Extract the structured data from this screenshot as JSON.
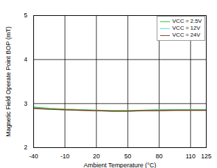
{
  "chart_data": {
    "type": "line",
    "xlabel": "Ambient Temperature (°C)",
    "ylabel": "Magnetic Field Operate Point BOP (mT)",
    "x": [
      -40,
      -25,
      -10,
      5,
      20,
      35,
      50,
      65,
      80,
      95,
      110,
      125
    ],
    "series": [
      {
        "name": "VCC = 2.5V",
        "color": "#33cc33",
        "values": [
          2.92,
          2.89,
          2.87,
          2.86,
          2.85,
          2.84,
          2.84,
          2.85,
          2.86,
          2.86,
          2.86,
          2.86
        ]
      },
      {
        "name": "VCC = 12V",
        "color": "#55dddd",
        "values": [
          2.9,
          2.88,
          2.86,
          2.85,
          2.84,
          2.83,
          2.83,
          2.84,
          2.85,
          2.85,
          2.85,
          2.85
        ]
      },
      {
        "name": "VCC = 24V",
        "color": "#8b3a1a",
        "values": [
          2.89,
          2.87,
          2.86,
          2.85,
          2.84,
          2.83,
          2.83,
          2.84,
          2.84,
          2.85,
          2.85,
          2.85
        ]
      }
    ],
    "xlim": [
      -40,
      125
    ],
    "xticks": [
      -40,
      -10,
      20,
      50,
      80,
      110,
      125
    ],
    "ylim": [
      2,
      5
    ],
    "yticks": [
      2,
      3,
      4,
      5
    ],
    "grid": true,
    "legend": "upper right"
  }
}
